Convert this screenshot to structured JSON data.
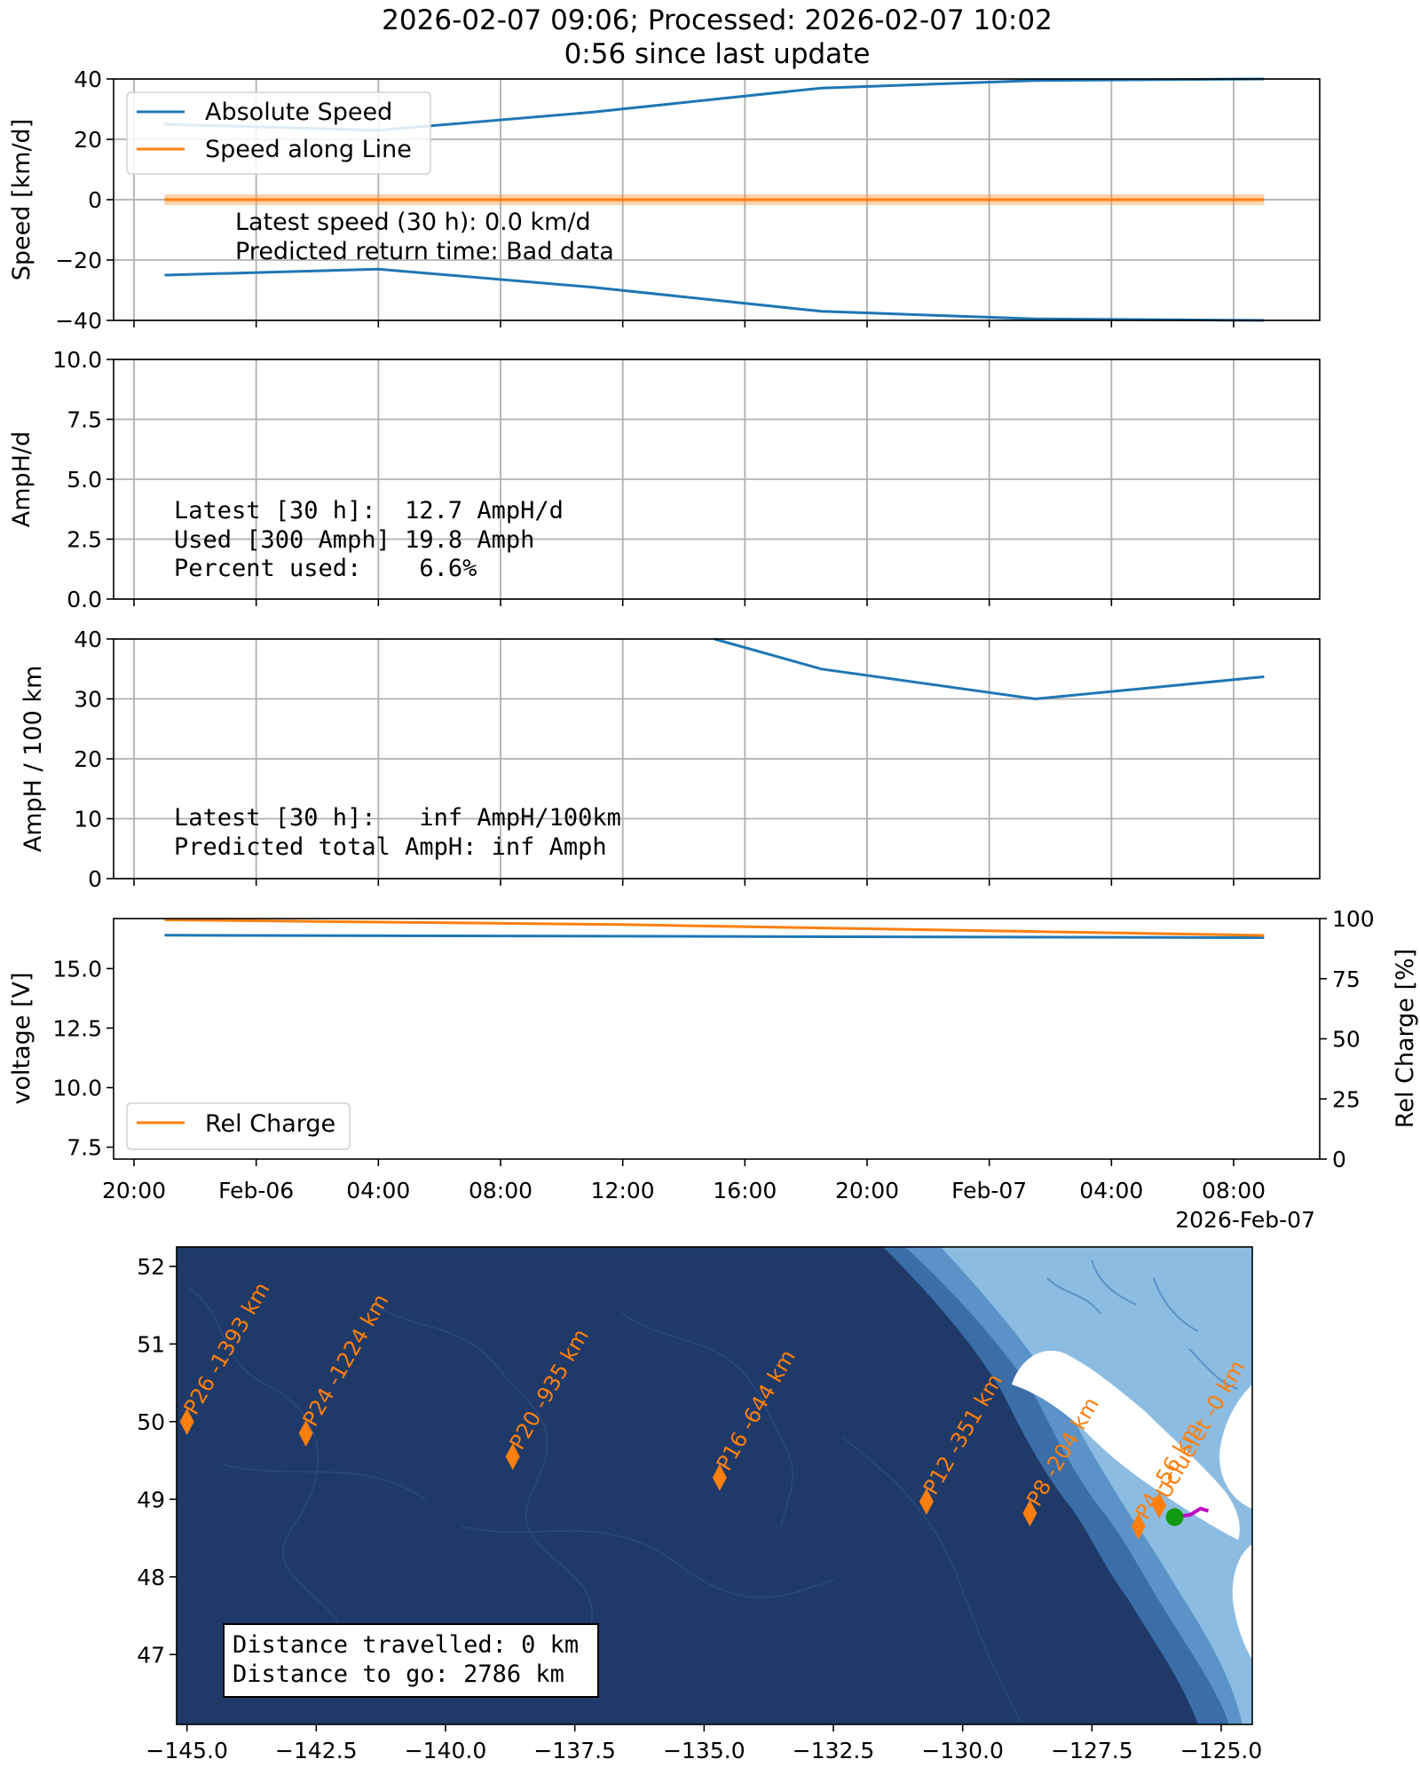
{
  "header": {
    "line1": "2026-02-07 09:06; Processed: 2026-02-07 10:02",
    "line2": "0:56 since last update"
  },
  "colors": {
    "blue": "#1f77b4",
    "orange": "#ff7f0e",
    "grid": "#b0b0b0",
    "ocean_deep": "#1f3a68",
    "track": "#c000c0",
    "position": "#119911"
  },
  "chart_data": [
    {
      "type": "line",
      "ylabel": "Speed [km/d]",
      "ylim": [
        -40,
        40
      ],
      "yticks": [
        "40",
        "20",
        "0",
        "−20",
        "−40"
      ],
      "ytick_values": [
        40,
        20,
        0,
        -20,
        -40
      ],
      "grid": true,
      "legend": "top-left",
      "series": [
        {
          "name": "Absolute Speed",
          "color": "#1f77b4",
          "x": [
            "2026-02-05 21:00",
            "2026-02-06 04:00",
            "2026-02-06 11:00",
            "2026-02-06 18:30",
            "2026-02-07 01:30",
            "2026-02-07 09:00"
          ],
          "y": [
            25,
            23,
            29,
            37,
            39.5,
            40
          ]
        },
        {
          "name": "",
          "color": "#1f77b4",
          "x": [
            "2026-02-05 21:00",
            "2026-02-06 04:00",
            "2026-02-06 11:00",
            "2026-02-06 18:30",
            "2026-02-07 01:30",
            "2026-02-07 09:00"
          ],
          "y": [
            -25,
            -23,
            -29,
            -37,
            -39.5,
            -40
          ]
        },
        {
          "name": "Speed along Line",
          "color": "#ff7f0e",
          "x": [
            "2026-02-05 21:00",
            "2026-02-07 09:00"
          ],
          "y": [
            0,
            0
          ]
        }
      ],
      "annotations": [
        "Latest speed (30 h): 0.0 km/d",
        "Predicted return time: Bad data"
      ]
    },
    {
      "type": "line",
      "ylabel": "AmpH/d",
      "ylim": [
        0,
        10
      ],
      "yticks": [
        "10.0",
        "7.5",
        "5.0",
        "2.5",
        "0.0"
      ],
      "ytick_values": [
        10,
        7.5,
        5,
        2.5,
        0
      ],
      "grid": true,
      "annotations": [
        "Latest [30 h]:  12.7 AmpH/d",
        "Used [300 Amph] 19.8 Amph",
        "Percent used:    6.6%"
      ]
    },
    {
      "type": "line",
      "ylabel": "AmpH / 100 km",
      "ylim": [
        0,
        40
      ],
      "yticks": [
        "40",
        "30",
        "20",
        "10",
        "0"
      ],
      "ytick_values": [
        40,
        30,
        20,
        10,
        0
      ],
      "grid": true,
      "series": [
        {
          "name": "",
          "color": "#1f77b4",
          "x": [
            "2026-02-06 15:00",
            "2026-02-06 18:30",
            "2026-02-07 01:30",
            "2026-02-07 09:00"
          ],
          "y": [
            40,
            35,
            30,
            33.7
          ]
        }
      ],
      "annotations": [
        "Latest [30 h]:   inf AmpH/100km",
        "Predicted total AmpH: inf Amph"
      ]
    },
    {
      "type": "line",
      "ylabel": "voltage [V]",
      "y2label": "Rel Charge [%]",
      "ylim": [
        7,
        17.1
      ],
      "yticks": [
        "15.0",
        "12.5",
        "10.0",
        "7.5"
      ],
      "ytick_values": [
        15,
        12.5,
        10,
        7.5
      ],
      "y2lim": [
        0,
        100
      ],
      "y2ticks": [
        "100",
        "75",
        "50",
        "25",
        "0"
      ],
      "y2tick_values": [
        100,
        75,
        50,
        25,
        0
      ],
      "legend": "bottom-left",
      "xticks": [
        "20:00",
        "Feb-06",
        "04:00",
        "08:00",
        "12:00",
        "16:00",
        "20:00",
        "Feb-07",
        "04:00",
        "08:00"
      ],
      "xtick_values": [
        "2026-02-05 20:00",
        "2026-02-06 00:00",
        "2026-02-06 04:00",
        "2026-02-06 08:00",
        "2026-02-06 12:00",
        "2026-02-06 16:00",
        "2026-02-06 20:00",
        "2026-02-07 00:00",
        "2026-02-07 04:00",
        "2026-02-07 08:00"
      ],
      "xoffset_label": "2026-Feb-07",
      "series": [
        {
          "name": "",
          "axis": "left",
          "color": "#1f77b4",
          "x": [
            "2026-02-05 21:00",
            "2026-02-07 09:00"
          ],
          "y": [
            16.4,
            16.3
          ]
        },
        {
          "name": "Rel Charge",
          "axis": "right",
          "color": "#ff7f0e",
          "x": [
            "2026-02-05 21:00",
            "2026-02-06 12:00",
            "2026-02-07 09:00"
          ],
          "y": [
            99.5,
            97.5,
            93
          ]
        }
      ]
    },
    {
      "type": "scatter",
      "xlim": [
        -145.2,
        -124.4
      ],
      "ylim": [
        46.1,
        52.25
      ],
      "xticks": [
        "−145.0",
        "−142.5",
        "−140.0",
        "−137.5",
        "−135.0",
        "−132.5",
        "−130.0",
        "−127.5",
        "−125.0"
      ],
      "xtick_values": [
        -145,
        -142.5,
        -140,
        -137.5,
        -135,
        -132.5,
        -130,
        -127.5,
        -125
      ],
      "yticks": [
        "52",
        "51",
        "50",
        "49",
        "48",
        "47"
      ],
      "ytick_values": [
        52,
        51,
        50,
        49,
        48,
        47
      ],
      "waypoints": [
        {
          "label": "P26 -1393 km",
          "lon": -145.0,
          "lat": 50.0
        },
        {
          "label": "P24 -1224 km",
          "lon": -142.7,
          "lat": 49.85
        },
        {
          "label": "P20 -935 km",
          "lon": -138.7,
          "lat": 49.55
        },
        {
          "label": "P16 -644 km",
          "lon": -134.7,
          "lat": 49.28
        },
        {
          "label": "P12 -351 km",
          "lon": -130.7,
          "lat": 48.97
        },
        {
          "label": "P8 -204 km",
          "lon": -128.7,
          "lat": 48.82
        },
        {
          "label": "P4 -56 km",
          "lon": -126.6,
          "lat": 48.65
        },
        {
          "label": "Ucluelet -0 km",
          "lon": -126.2,
          "lat": 48.92
        }
      ],
      "position": {
        "lon": -125.9,
        "lat": 48.77
      },
      "track": [
        [
          -125.9,
          48.77
        ],
        [
          -125.6,
          48.8
        ],
        [
          -125.4,
          48.88
        ],
        [
          -125.25,
          48.85
        ]
      ],
      "annotations": [
        "Distance travelled: 0 km",
        "Distance to go: 2786 km"
      ]
    }
  ]
}
